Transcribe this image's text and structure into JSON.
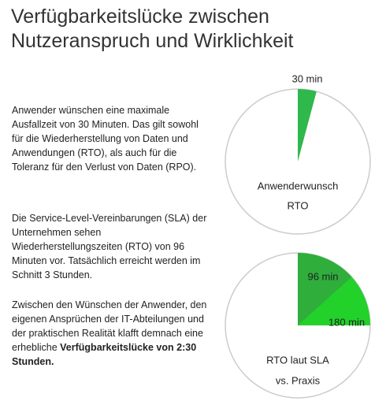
{
  "header": {
    "title": [
      "Verfügbarkeitslücke zwischen",
      "Nutzeranspruch und Wirklichkeit"
    ]
  },
  "paragraphs": [
    [
      "Anwender wünschen eine maximale Ausfallzeit von 30 Minuten. Das gilt sowohl für die Wiederherstellung von Daten und Anwendungen (RTO), als auch für die Toleranz für den Verlust von Daten (RPO)."
    ],
    [
      "Die Service-Level-Vereinbarungen (SLA) der Unternehmen sehen Wiederherstellungszeiten (RTO) von 96 Minuten vor. Tatsächlich erreicht werden im Schnitt 3 Stunden."
    ],
    [
      "Zwischen den Wünschen der Anwender, den eigenen Ansprüchen der IT-Abteilungen und der praktischen Realität klafft demnach eine erhebliche ",
      "Verfügbarkeitslücke von 2:30 Stunden."
    ]
  ],
  "chart_data": [
    {
      "type": "pie",
      "title": [
        "Anwenderwunsch",
        "RTO"
      ],
      "lim": [
        0,
        720
      ],
      "values": [
        30
      ],
      "value_labels": [
        "30 min"
      ],
      "colors": [
        "#2fb84c"
      ]
    },
    {
      "type": "pie",
      "title": [
        "RTO laut SLA",
        "vs. Praxis"
      ],
      "lim": [
        0,
        720
      ],
      "values": [
        96,
        180
      ],
      "value_labels": [
        "96 min",
        "180 min"
      ],
      "colors": [
        "#2fae3c",
        "#22d12a"
      ]
    }
  ]
}
